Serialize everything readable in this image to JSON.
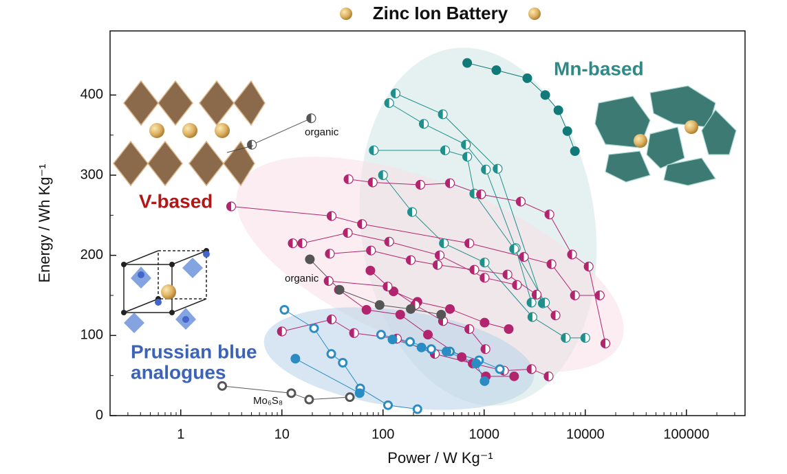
{
  "chart_data": {
    "type": "line",
    "title": "Zinc Ion Battery",
    "x_label": "Power / W Kg⁻¹",
    "y_label": "Energy / Wh Kg⁻¹",
    "xscale": "log",
    "xlim": [
      0.2,
      380000
    ],
    "ylim": [
      0,
      480
    ],
    "xticks": [
      1,
      10,
      100,
      1000,
      10000,
      100000
    ],
    "yticks": [
      0,
      100,
      200,
      300,
      400
    ],
    "annotations": [
      "Mn-based",
      "V-based",
      "Prussian blue",
      "analogues",
      "organic",
      "organic",
      "Mo₆S₈"
    ],
    "series": [
      {
        "color": "#117a78",
        "marker": "solid",
        "x": [
          680,
          1320,
          2670,
          4020,
          5420,
          6650,
          7900
        ],
        "values": [
          440,
          431,
          421,
          400,
          381,
          355,
          330
        ]
      },
      {
        "color": "#1f8f8c",
        "marker": "half",
        "x": [
          133,
          390,
          1360,
          3800
        ],
        "values": [
          402,
          376,
          308,
          140
        ]
      },
      {
        "color": "#1f8f8c",
        "marker": "half",
        "x": [
          115,
          253,
          660,
          1040,
          2050,
          2940
        ],
        "values": [
          390,
          364,
          338,
          307,
          209,
          141
        ]
      },
      {
        "color": "#1f8f8c",
        "marker": "half",
        "x": [
          81,
          411,
          680,
          800,
          1980,
          3990
        ],
        "values": [
          331,
          331,
          323,
          277,
          208,
          141
        ]
      },
      {
        "color": "#1f8f8c",
        "marker": "half",
        "x": [
          100,
          194,
          400,
          1010,
          3000,
          6400,
          10000
        ],
        "values": [
          300,
          254,
          215,
          191,
          123,
          97,
          97
        ]
      },
      {
        "color": "#b3246e",
        "marker": "half",
        "x": [
          3.15,
          31,
          62,
          713,
          2470,
          4630,
          7900,
          13900
        ],
        "values": [
          261,
          249,
          239,
          215,
          198,
          189,
          150,
          150
        ]
      },
      {
        "color": "#b3246e",
        "marker": "half",
        "x": [
          45.6,
          79,
          234,
          459,
          932,
          2300,
          4420,
          7400,
          10800,
          15800
        ],
        "values": [
          295,
          291,
          288,
          290,
          276,
          267,
          251,
          201,
          186,
          90
        ]
      },
      {
        "color": "#b3246e",
        "marker": "half",
        "x": [
          12.8,
          15.9,
          44.8,
          115,
          363,
          1010,
          2110
        ],
        "values": [
          215,
          215,
          228,
          217,
          200,
          172,
          163
        ]
      },
      {
        "color": "#b3246e",
        "marker": "half",
        "x": [
          29.8,
          76,
          188,
          346,
          800,
          1700,
          3300,
          5080
        ],
        "values": [
          202,
          206,
          194,
          188,
          182,
          176,
          151,
          125
        ]
      },
      {
        "color": "#b3246e",
        "marker": "half",
        "x": [
          10,
          31,
          51.7,
          137,
          325,
          771,
          1570,
          2940,
          4340
        ],
        "values": [
          105,
          120,
          103,
          96,
          77,
          65,
          56,
          58,
          49
        ]
      },
      {
        "color": "#b3246e",
        "marker": "solid",
        "x": [
          75,
          127,
          219,
          459,
          1010,
          1750
        ],
        "values": [
          181,
          155,
          142,
          133,
          116,
          108
        ]
      },
      {
        "color": "#b3246e",
        "marker": "solid",
        "x": [
          36.6,
          68.6,
          148,
          278,
          600,
          1040,
          1980
        ],
        "values": [
          157,
          132,
          126,
          101,
          73,
          49,
          49
        ]
      },
      {
        "color": "#b3246e",
        "marker": "half",
        "x": [
          29,
          111,
          208,
          392,
          713,
          1030
        ],
        "values": [
          168,
          161,
          138,
          118,
          108,
          83
        ]
      },
      {
        "color": "#2b8cc4",
        "marker": "ring",
        "x": [
          10.6,
          20.8,
          30.8,
          40,
          59.5,
          112,
          219
        ],
        "values": [
          132,
          109,
          77,
          66,
          34,
          13,
          8
        ]
      },
      {
        "color": "#2b8cc4",
        "marker": "solid",
        "x": [
          13.6,
          58.7
        ],
        "values": [
          71,
          28
        ]
      },
      {
        "color": "#2b8cc4",
        "marker": "ring",
        "x": [
          95.7,
          185,
          300,
          459,
          889,
          1430
        ],
        "values": [
          101,
          92,
          83,
          80,
          69,
          58
        ]
      },
      {
        "color": "#2b8cc4",
        "marker": "solid",
        "x": [
          124,
          240,
          424,
          836,
          1010
        ],
        "values": [
          95,
          85,
          80,
          65,
          43
        ]
      },
      {
        "color": "#555555",
        "marker": "half",
        "x": [
          5.05,
          19.5
        ],
        "values": [
          338,
          371
        ]
      },
      {
        "color": "#555555",
        "marker": "solid",
        "x": [
          18.9,
          37.2,
          92.6,
          188,
          376
        ],
        "values": [
          195,
          157,
          138,
          133,
          126
        ]
      },
      {
        "color": "#555555",
        "marker": "ring",
        "x": [
          2.57,
          12.4,
          18.6,
          47
        ],
        "values": [
          37,
          28,
          20,
          23
        ]
      }
    ]
  }
}
